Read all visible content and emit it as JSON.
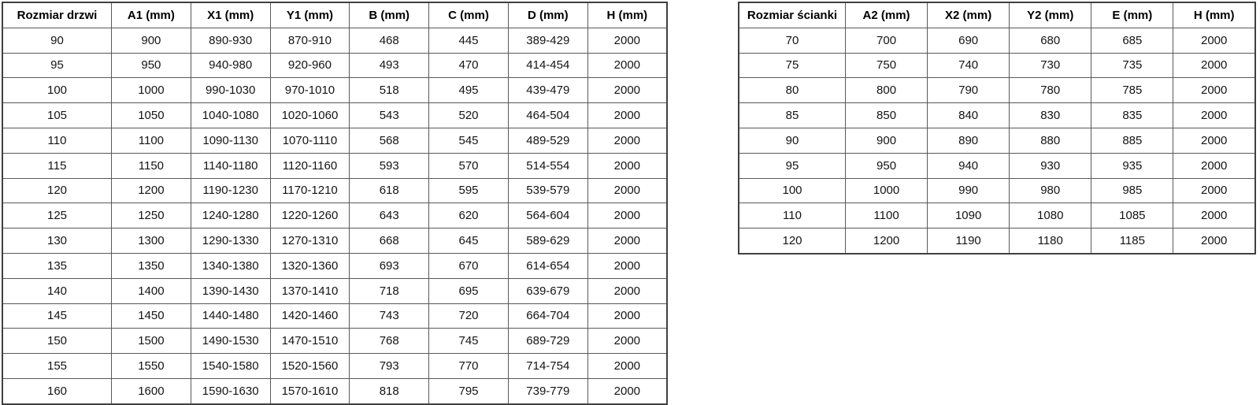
{
  "colors": {
    "background": "#ffffff",
    "text": "#141414",
    "inner_border": "#595959",
    "outer_border": "#404040"
  },
  "tables": [
    {
      "name": "door-size-table",
      "headers": [
        "Rozmiar drzwi",
        "A1 (mm)",
        "X1 (mm)",
        "Y1 (mm)",
        "B (mm)",
        "C (mm)",
        "D (mm)",
        "H (mm)"
      ],
      "rows": [
        [
          "90",
          "900",
          "890-930",
          "870-910",
          "468",
          "445",
          "389-429",
          "2000"
        ],
        [
          "95",
          "950",
          "940-980",
          "920-960",
          "493",
          "470",
          "414-454",
          "2000"
        ],
        [
          "100",
          "1000",
          "990-1030",
          "970-1010",
          "518",
          "495",
          "439-479",
          "2000"
        ],
        [
          "105",
          "1050",
          "1040-1080",
          "1020-1060",
          "543",
          "520",
          "464-504",
          "2000"
        ],
        [
          "110",
          "1100",
          "1090-1130",
          "1070-1110",
          "568",
          "545",
          "489-529",
          "2000"
        ],
        [
          "115",
          "1150",
          "1140-1180",
          "1120-1160",
          "593",
          "570",
          "514-554",
          "2000"
        ],
        [
          "120",
          "1200",
          "1190-1230",
          "1170-1210",
          "618",
          "595",
          "539-579",
          "2000"
        ],
        [
          "125",
          "1250",
          "1240-1280",
          "1220-1260",
          "643",
          "620",
          "564-604",
          "2000"
        ],
        [
          "130",
          "1300",
          "1290-1330",
          "1270-1310",
          "668",
          "645",
          "589-629",
          "2000"
        ],
        [
          "135",
          "1350",
          "1340-1380",
          "1320-1360",
          "693",
          "670",
          "614-654",
          "2000"
        ],
        [
          "140",
          "1400",
          "1390-1430",
          "1370-1410",
          "718",
          "695",
          "639-679",
          "2000"
        ],
        [
          "145",
          "1450",
          "1440-1480",
          "1420-1460",
          "743",
          "720",
          "664-704",
          "2000"
        ],
        [
          "150",
          "1500",
          "1490-1530",
          "1470-1510",
          "768",
          "745",
          "689-729",
          "2000"
        ],
        [
          "155",
          "1550",
          "1540-1580",
          "1520-1560",
          "793",
          "770",
          "714-754",
          "2000"
        ],
        [
          "160",
          "1600",
          "1590-1630",
          "1570-1610",
          "818",
          "795",
          "739-779",
          "2000"
        ]
      ]
    },
    {
      "name": "wall-panel-size-table",
      "headers": [
        "Rozmiar ścianki",
        "A2 (mm)",
        "X2 (mm)",
        "Y2 (mm)",
        "E (mm)",
        "H (mm)"
      ],
      "rows": [
        [
          "70",
          "700",
          "690",
          "680",
          "685",
          "2000"
        ],
        [
          "75",
          "750",
          "740",
          "730",
          "735",
          "2000"
        ],
        [
          "80",
          "800",
          "790",
          "780",
          "785",
          "2000"
        ],
        [
          "85",
          "850",
          "840",
          "830",
          "835",
          "2000"
        ],
        [
          "90",
          "900",
          "890",
          "880",
          "885",
          "2000"
        ],
        [
          "95",
          "950",
          "940",
          "930",
          "935",
          "2000"
        ],
        [
          "100",
          "1000",
          "990",
          "980",
          "985",
          "2000"
        ],
        [
          "110",
          "1100",
          "1090",
          "1080",
          "1085",
          "2000"
        ],
        [
          "120",
          "1200",
          "1190",
          "1180",
          "1185",
          "2000"
        ]
      ]
    }
  ]
}
